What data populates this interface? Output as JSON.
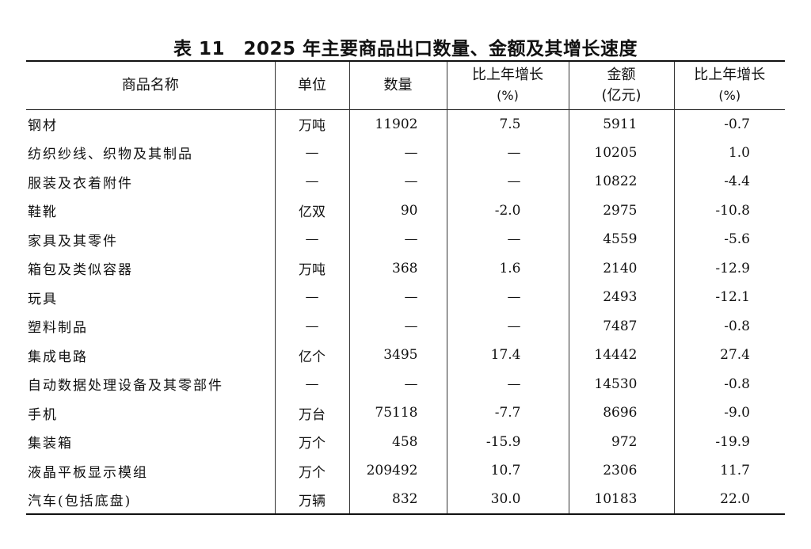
{
  "title": "表 11　2025 年主要商品出口数量、金额及其增长速度",
  "headers": {
    "name": "商品名称",
    "unit": "单位",
    "quantity": "数量",
    "qty_growth": "比上年增长",
    "qty_growth_unit": "(%)",
    "amount": "金额",
    "amount_unit": "(亿元)",
    "amt_growth": "比上年增长",
    "amt_growth_unit": "(%)"
  },
  "rows": [
    {
      "name": "钢材",
      "unit": "万吨",
      "quantity": "11902",
      "qty_growth": "7.5",
      "amount": "5911",
      "amt_growth": "-0.7"
    },
    {
      "name": "纺织纱线、织物及其制品",
      "unit": "—",
      "quantity": "—",
      "qty_growth": "—",
      "amount": "10205",
      "amt_growth": "1.0"
    },
    {
      "name": "服装及衣着附件",
      "unit": "—",
      "quantity": "—",
      "qty_growth": "—",
      "amount": "10822",
      "amt_growth": "-4.4"
    },
    {
      "name": "鞋靴",
      "unit": "亿双",
      "quantity": "90",
      "qty_growth": "-2.0",
      "amount": "2975",
      "amt_growth": "-10.8"
    },
    {
      "name": "家具及其零件",
      "unit": "—",
      "quantity": "—",
      "qty_growth": "—",
      "amount": "4559",
      "amt_growth": "-5.6"
    },
    {
      "name": "箱包及类似容器",
      "unit": "万吨",
      "quantity": "368",
      "qty_growth": "1.6",
      "amount": "2140",
      "amt_growth": "-12.9"
    },
    {
      "name": "玩具",
      "unit": "—",
      "quantity": "—",
      "qty_growth": "—",
      "amount": "2493",
      "amt_growth": "-12.1"
    },
    {
      "name": "塑料制品",
      "unit": "—",
      "quantity": "—",
      "qty_growth": "—",
      "amount": "7487",
      "amt_growth": "-0.8"
    },
    {
      "name": "集成电路",
      "unit": "亿个",
      "quantity": "3495",
      "qty_growth": "17.4",
      "amount": "14442",
      "amt_growth": "27.4"
    },
    {
      "name": "自动数据处理设备及其零部件",
      "unit": "—",
      "quantity": "—",
      "qty_growth": "—",
      "amount": "14530",
      "amt_growth": "-0.8"
    },
    {
      "name": "手机",
      "unit": "万台",
      "quantity": "75118",
      "qty_growth": "-7.7",
      "amount": "8696",
      "amt_growth": "-9.0"
    },
    {
      "name": "集装箱",
      "unit": "万个",
      "quantity": "458",
      "qty_growth": "-15.9",
      "amount": "972",
      "amt_growth": "-19.9"
    },
    {
      "name": "液晶平板显示模组",
      "unit": "万个",
      "quantity": "209492",
      "qty_growth": "10.7",
      "amount": "2306",
      "amt_growth": "11.7"
    },
    {
      "name": "汽车(包括底盘)",
      "unit": "万辆",
      "quantity": "832",
      "qty_growth": "30.0",
      "amount": "10183",
      "amt_growth": "22.0"
    }
  ]
}
